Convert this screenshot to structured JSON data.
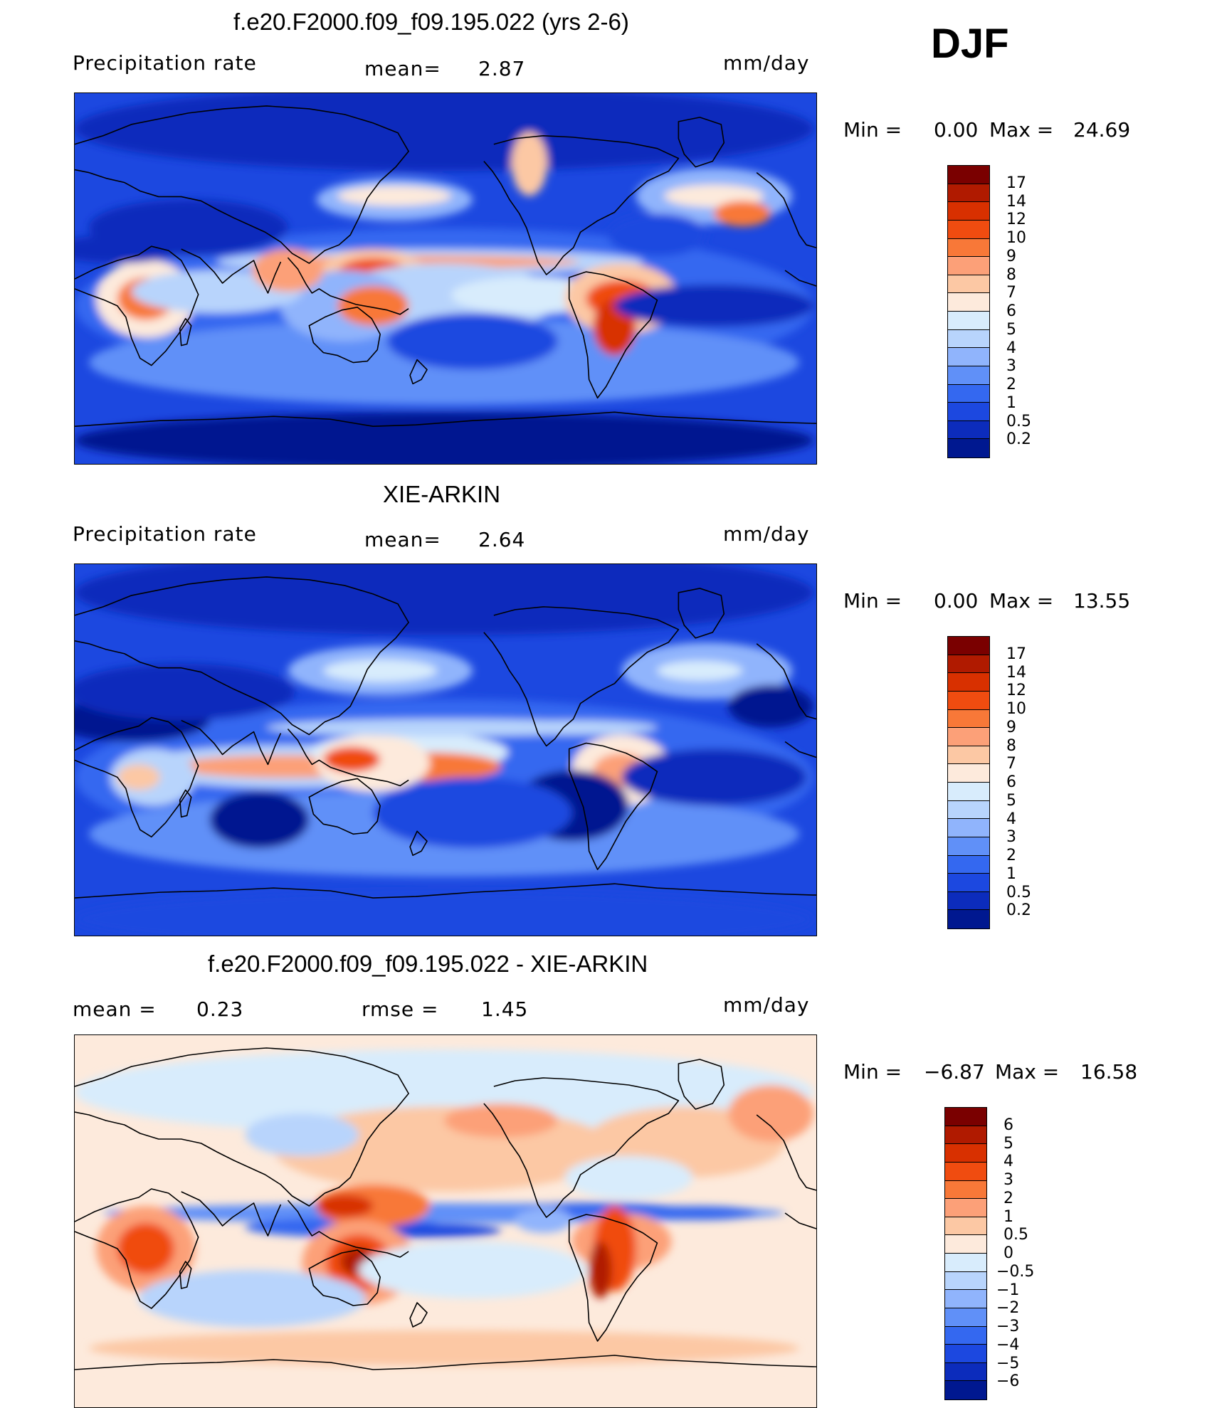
{
  "season": "DJF",
  "panels": [
    {
      "title": "f.e20.F2000.f09_f09.195.022 (yrs 2-6)",
      "left_label": "Precipitation  rate",
      "mid_label": "mean=",
      "mid_value": "2.87",
      "units": "mm/day",
      "minmax": {
        "min_label": "Min  =",
        "min_value": "0.00",
        "max_label": "Max  =",
        "max_value": "24.69"
      },
      "colorbar": {
        "ticks": [
          "17",
          "14",
          "12",
          "10",
          "9",
          "8",
          "7",
          "6",
          "5",
          "4",
          "3",
          "2",
          "1",
          "0.5",
          "0.2"
        ],
        "colors": [
          "#7a0000",
          "#b01a00",
          "#d83000",
          "#f04c10",
          "#f87838",
          "#fca078",
          "#fcc8a4",
          "#fdeadc",
          "#d8ecfc",
          "#b8d4fc",
          "#90b4fc",
          "#6090f8",
          "#3468f0",
          "#1c48e0",
          "#0c2cbc",
          "#001890"
        ]
      },
      "field": "model"
    },
    {
      "title": "XIE-ARKIN",
      "left_label": "Precipitation  rate",
      "mid_label": "mean=",
      "mid_value": "2.64",
      "units": "mm/day",
      "minmax": {
        "min_label": "Min  =",
        "min_value": "0.00",
        "max_label": "Max  =",
        "max_value": "13.55"
      },
      "colorbar": {
        "ticks": [
          "17",
          "14",
          "12",
          "10",
          "9",
          "8",
          "7",
          "6",
          "5",
          "4",
          "3",
          "2",
          "1",
          "0.5",
          "0.2"
        ],
        "colors": [
          "#7a0000",
          "#b01a00",
          "#d83000",
          "#f04c10",
          "#f87838",
          "#fca078",
          "#fcc8a4",
          "#fdeadc",
          "#d8ecfc",
          "#b8d4fc",
          "#90b4fc",
          "#6090f8",
          "#3468f0",
          "#1c48e0",
          "#0c2cbc",
          "#001890"
        ]
      },
      "field": "obs"
    },
    {
      "title": "f.e20.F2000.f09_f09.195.022 - XIE-ARKIN",
      "left_label": "mean  =",
      "left_value": "0.23",
      "mid_label": "rmse  =",
      "mid_value": "1.45",
      "units": "mm/day",
      "minmax": {
        "min_label": "Min  =",
        "min_value": "−6.87",
        "max_label": "Max  =",
        "max_value": "16.58"
      },
      "colorbar": {
        "ticks": [
          "6",
          "5",
          "4",
          "3",
          "2",
          "1",
          "0.5",
          "0",
          "−0.5",
          "−1",
          "−2",
          "−3",
          "−4",
          "−5",
          "−6"
        ],
        "colors": [
          "#7a0000",
          "#b01a00",
          "#d83000",
          "#f04c10",
          "#f87838",
          "#fca078",
          "#fcc8a4",
          "#fdeadc",
          "#d8ecfc",
          "#b8d4fc",
          "#90b4fc",
          "#6090f8",
          "#3468f0",
          "#1c48e0",
          "#0c2cbc",
          "#001890"
        ]
      },
      "field": "diff"
    }
  ]
}
